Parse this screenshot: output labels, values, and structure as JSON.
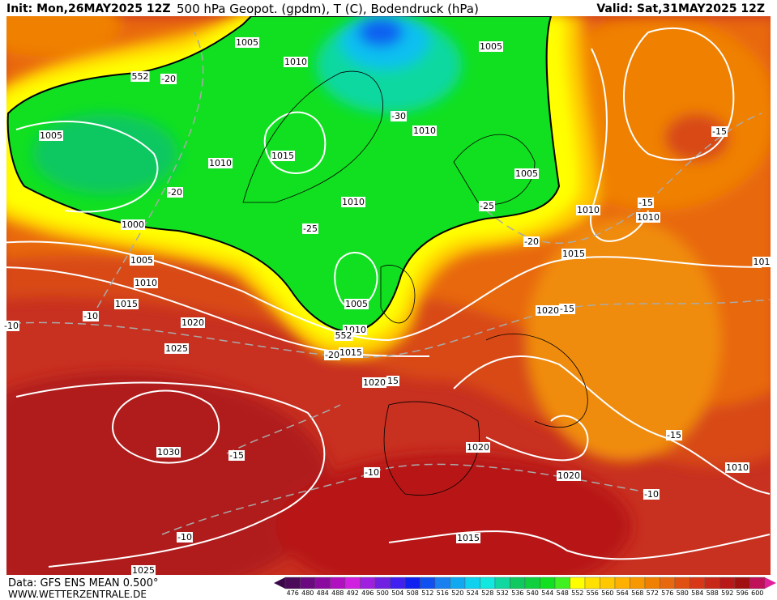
{
  "header": {
    "init": "Init: Mon,26MAY2025 12Z",
    "title": "500 hPa Geopot. (gpdm), T (C), Bodendruck (hPa)",
    "valid": "Valid: Sat,31MAY2025 12Z"
  },
  "footer": {
    "data": "Data: GFS ENS MEAN 0.500°",
    "site": "WWW.WETTERZENTRALE.DE"
  },
  "map_labels": [
    "1005",
    "1010",
    "552",
    "-20",
    "1005",
    "-30",
    "1010",
    "1005",
    "1015",
    "1010",
    "1005",
    "-20",
    "1010",
    "-25",
    "1010",
    "-15",
    "1010",
    "-15",
    "1000",
    "-25",
    "-20",
    "1015",
    "1005",
    "101",
    "1010",
    "1005",
    "1015",
    "1020",
    "-15",
    "-10",
    "-10",
    "1020",
    "1010",
    "552",
    "1015",
    "-20",
    "1025",
    "1020",
    "15",
    "1030",
    "-15",
    "1020",
    "-15",
    "-10",
    "1020",
    "1010",
    "-10",
    "-10",
    "1015",
    "1025"
  ],
  "legend": {
    "ticks": [
      476,
      480,
      484,
      488,
      492,
      496,
      500,
      504,
      508,
      512,
      516,
      520,
      524,
      528,
      532,
      536,
      540,
      544,
      548,
      552,
      556,
      560,
      564,
      568,
      572,
      576,
      580,
      584,
      588,
      592,
      596,
      600
    ],
    "colors": [
      "#4b0a5a",
      "#6b0a80",
      "#8a0aa0",
      "#b010c0",
      "#d020e0",
      "#a020e0",
      "#7020e0",
      "#4020f0",
      "#1020f0",
      "#1050f0",
      "#1a80f0",
      "#10a8f0",
      "#10d0f0",
      "#10e8e0",
      "#10d8a0",
      "#10c860",
      "#10d040",
      "#10e020",
      "#40f020",
      "#ffff00",
      "#ffe000",
      "#ffc800",
      "#ffb000",
      "#f89800",
      "#f08000",
      "#e86810",
      "#e05010",
      "#d83818",
      "#c82818",
      "#b81818",
      "#a01010",
      "#c0105a"
    ]
  }
}
